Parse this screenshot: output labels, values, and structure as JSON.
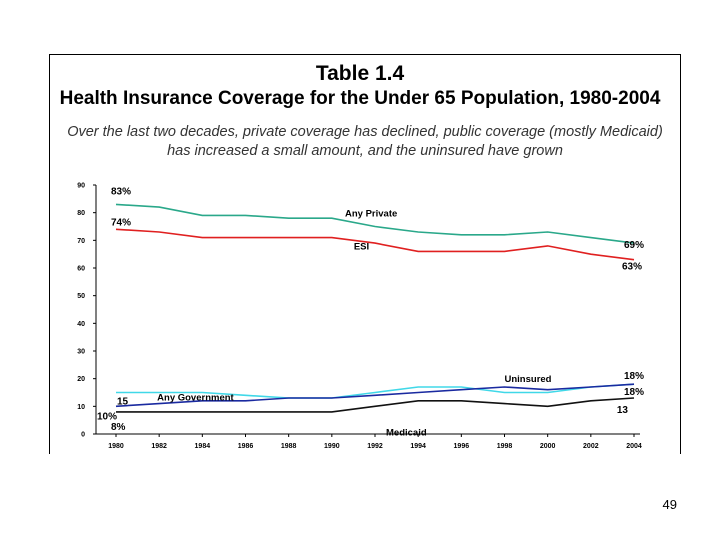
{
  "slide": {
    "title_line1": "Table 1.4",
    "title_line2": "Health Insurance Coverage for the Under 65 Population, 1980-2004",
    "subtitle": "Over the last two decades, private coverage has declined, public coverage (mostly Medicaid) has increased a small amount, and the uninsured have grown",
    "page_number": "49"
  },
  "chart_data": {
    "type": "line",
    "title": "",
    "xlabel": "",
    "ylabel": "",
    "ylim": [
      0,
      90
    ],
    "yticks": [
      "0",
      "10",
      "20",
      "30",
      "40",
      "50",
      "60",
      "70",
      "80",
      "90"
    ],
    "categories": [
      "1980",
      "1982",
      "1984",
      "1986",
      "1988",
      "1990",
      "1992",
      "1994",
      "1996",
      "1998",
      "2000",
      "2002",
      "2004"
    ],
    "grid": false,
    "legend": "none",
    "series": [
      {
        "name": "Any Private",
        "color": "#2aa88a",
        "values": [
          83,
          82,
          79,
          79,
          78,
          78,
          75,
          73,
          72,
          72,
          73,
          71,
          69
        ]
      },
      {
        "name": "ESI",
        "color": "#e02020",
        "values": [
          74,
          73,
          71,
          71,
          71,
          71,
          69,
          66,
          66,
          66,
          68,
          65,
          63
        ]
      },
      {
        "name": "Any Government",
        "color": "#40d8e8",
        "values": [
          15,
          15,
          15,
          14,
          13,
          13,
          15,
          17,
          17,
          15,
          15,
          17,
          18
        ]
      },
      {
        "name": "Uninsured",
        "color": "#1a2aa0",
        "values": [
          10,
          11,
          12,
          12,
          13,
          13,
          14,
          15,
          16,
          17,
          16,
          17,
          18
        ]
      },
      {
        "name": "Medicaid",
        "color": "#111111",
        "values": [
          8,
          8,
          8,
          8,
          8,
          8,
          10,
          12,
          12,
          11,
          10,
          12,
          13
        ]
      }
    ],
    "annotations": [
      {
        "text": "83%",
        "x": "1980",
        "y": 83,
        "kind": "pct"
      },
      {
        "text": "74%",
        "x": "1980",
        "y": 74,
        "kind": "pct"
      },
      {
        "text": "Any Private",
        "x": "1992",
        "y": 75,
        "kind": "label"
      },
      {
        "text": "ESI",
        "x": "1990",
        "y": 71,
        "kind": "label"
      },
      {
        "text": "69%",
        "x": "2004",
        "y": 69,
        "kind": "pct"
      },
      {
        "text": "63%",
        "x": "2004",
        "y": 63,
        "kind": "pct"
      },
      {
        "text": "15",
        "x": "1980",
        "y": 15,
        "kind": "pct"
      },
      {
        "text": "Any Government",
        "x": "1982",
        "y": 15,
        "kind": "label"
      },
      {
        "text": "10%",
        "x": "1980",
        "y": 10,
        "kind": "pct"
      },
      {
        "text": "8%",
        "x": "1980",
        "y": 8,
        "kind": "pct"
      },
      {
        "text": "Uninsured",
        "x": "1998",
        "y": 17,
        "kind": "label"
      },
      {
        "text": "Medicaid",
        "x": "1992",
        "y": 10,
        "kind": "label"
      },
      {
        "text": "18%",
        "x": "2004",
        "y": 18,
        "kind": "pct"
      },
      {
        "text": "18%",
        "x": "2004",
        "y": 18,
        "kind": "pct"
      },
      {
        "text": "13",
        "x": "2004",
        "y": 13,
        "kind": "pct"
      }
    ]
  }
}
